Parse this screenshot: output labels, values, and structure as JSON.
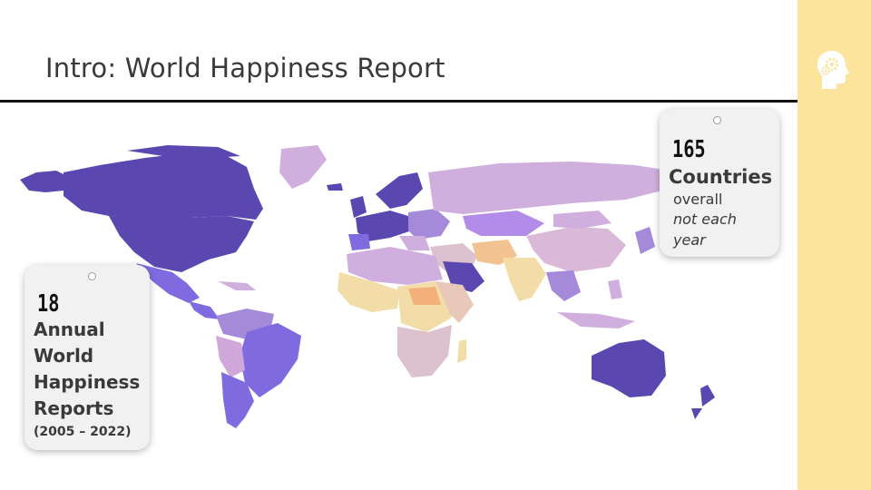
{
  "slide": {
    "title": "Intro: World Happiness Report"
  },
  "colors": {
    "sidebar": "#fde49d",
    "rule": "#111111",
    "high_happiness": "#5a48b0",
    "mid_high": "#7f6ae0",
    "mid": "#d0aede",
    "low_mid": "#dcc1cf",
    "low": "#f2dca8",
    "lowest": "#f4b07a"
  },
  "map": {
    "icon": "world-choropleth-map"
  },
  "cards": {
    "countries": {
      "number": "165",
      "label": "Countries",
      "line1": "overall",
      "line2": "not each",
      "line3": "year"
    },
    "reports": {
      "number": "18",
      "line1": "Annual",
      "line2": "World",
      "line3": "Happiness",
      "line4": "Reports",
      "range": "(2005 – 2022)"
    }
  },
  "sidebar": {
    "icon": "head-gears-icon"
  }
}
